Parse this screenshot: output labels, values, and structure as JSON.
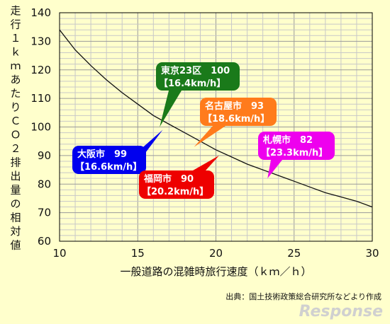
{
  "chart_data": {
    "type": "line",
    "title": "",
    "xlabel": "一般道路の混雑時旅行速度（ｋｍ／ｈ）",
    "ylabel": "走行１ｋｍあたりＣＯ２排出量の相対値",
    "xlim": [
      10,
      30
    ],
    "ylim": [
      60,
      140
    ],
    "x_ticks": [
      "10",
      "15",
      "20",
      "25",
      "30"
    ],
    "y_ticks": [
      "60",
      "70",
      "80",
      "90",
      "100",
      "110",
      "120",
      "130",
      "140"
    ],
    "grid": true,
    "series": [
      {
        "x": [
          10,
          11,
          12,
          13,
          14,
          15,
          16,
          17,
          18,
          19,
          20,
          21,
          22,
          23,
          24,
          25,
          26,
          27,
          28,
          29,
          30
        ],
        "y": [
          134,
          127,
          121.5,
          116.5,
          112,
          108,
          104,
          101,
          98,
          95,
          92,
          89.5,
          87,
          85,
          83,
          81,
          79,
          77,
          75.5,
          74,
          72
        ]
      }
    ],
    "annotations": [
      {
        "name": "tokyo",
        "line1": "東京23区　100",
        "line2": "【16.4km/h】",
        "x": 16.4,
        "y": 100,
        "color": "#1a7a1a"
      },
      {
        "name": "nagoya",
        "line1": "名古屋市　93",
        "line2": "【18.6km/h】",
        "x": 18.6,
        "y": 93,
        "color": "#ff7b1c"
      },
      {
        "name": "osaka",
        "line1": "大阪市　99",
        "line2": "【16.6km/h】",
        "x": 16.6,
        "y": 99,
        "color": "#0000ee"
      },
      {
        "name": "fukuoka",
        "line1": "福岡市　90",
        "line2": "【20.2km/h】",
        "x": 20.2,
        "y": 90,
        "color": "#ee0000"
      },
      {
        "name": "sapporo",
        "line1": "札幌市　82",
        "line2": "【23.3km/h】",
        "x": 23.3,
        "y": 82,
        "color": "#ee00ee"
      }
    ]
  },
  "footer": {
    "source": "出典：国土技術政策総合研究所などより作成",
    "watermark": "Response"
  }
}
